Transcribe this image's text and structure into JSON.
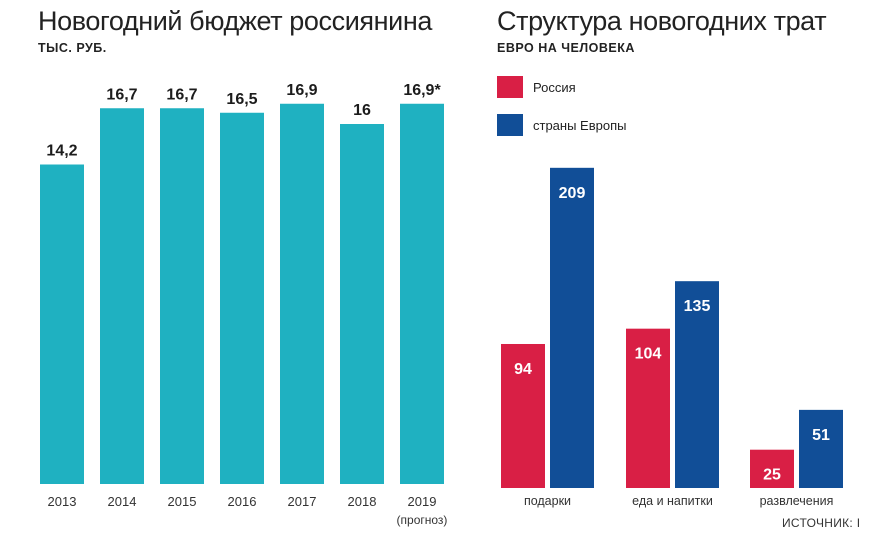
{
  "colors": {
    "teal": "#1fb1c1",
    "russia": "#d91f45",
    "europe": "#114e97",
    "label_dark": "#1c1c1c",
    "label_light": "#ffffff"
  },
  "source_text": "ИСТОЧНИК: I",
  "chart_data": [
    {
      "type": "bar",
      "title": "Новогодний бюджет россиянина",
      "subtitle": "ТЫС. РУБ.",
      "categories": [
        "2013",
        "2014",
        "2015",
        "2016",
        "2017",
        "2018",
        "2019"
      ],
      "category_notes": [
        "",
        "",
        "",
        "",
        "",
        "",
        "(прогноз)"
      ],
      "values": [
        14.2,
        16.7,
        16.7,
        16.5,
        16.9,
        16.0,
        16.9
      ],
      "value_labels": [
        "14,2",
        "16,7",
        "16,7",
        "16,5",
        "16,9",
        "16",
        "16,9*"
      ],
      "ylim": [
        0,
        18
      ]
    },
    {
      "type": "bar",
      "title": "Структура новогодних трат",
      "subtitle": "ЕВРО НА ЧЕЛОВЕКА",
      "categories": [
        "подарки",
        "еда и напитки",
        "развлечения"
      ],
      "series": [
        {
          "name": "Россия",
          "values": [
            94,
            104,
            25
          ]
        },
        {
          "name": "страны Европы",
          "values": [
            209,
            135,
            51
          ]
        }
      ],
      "legend_position": "top-left",
      "ylim": [
        0,
        220
      ]
    }
  ]
}
